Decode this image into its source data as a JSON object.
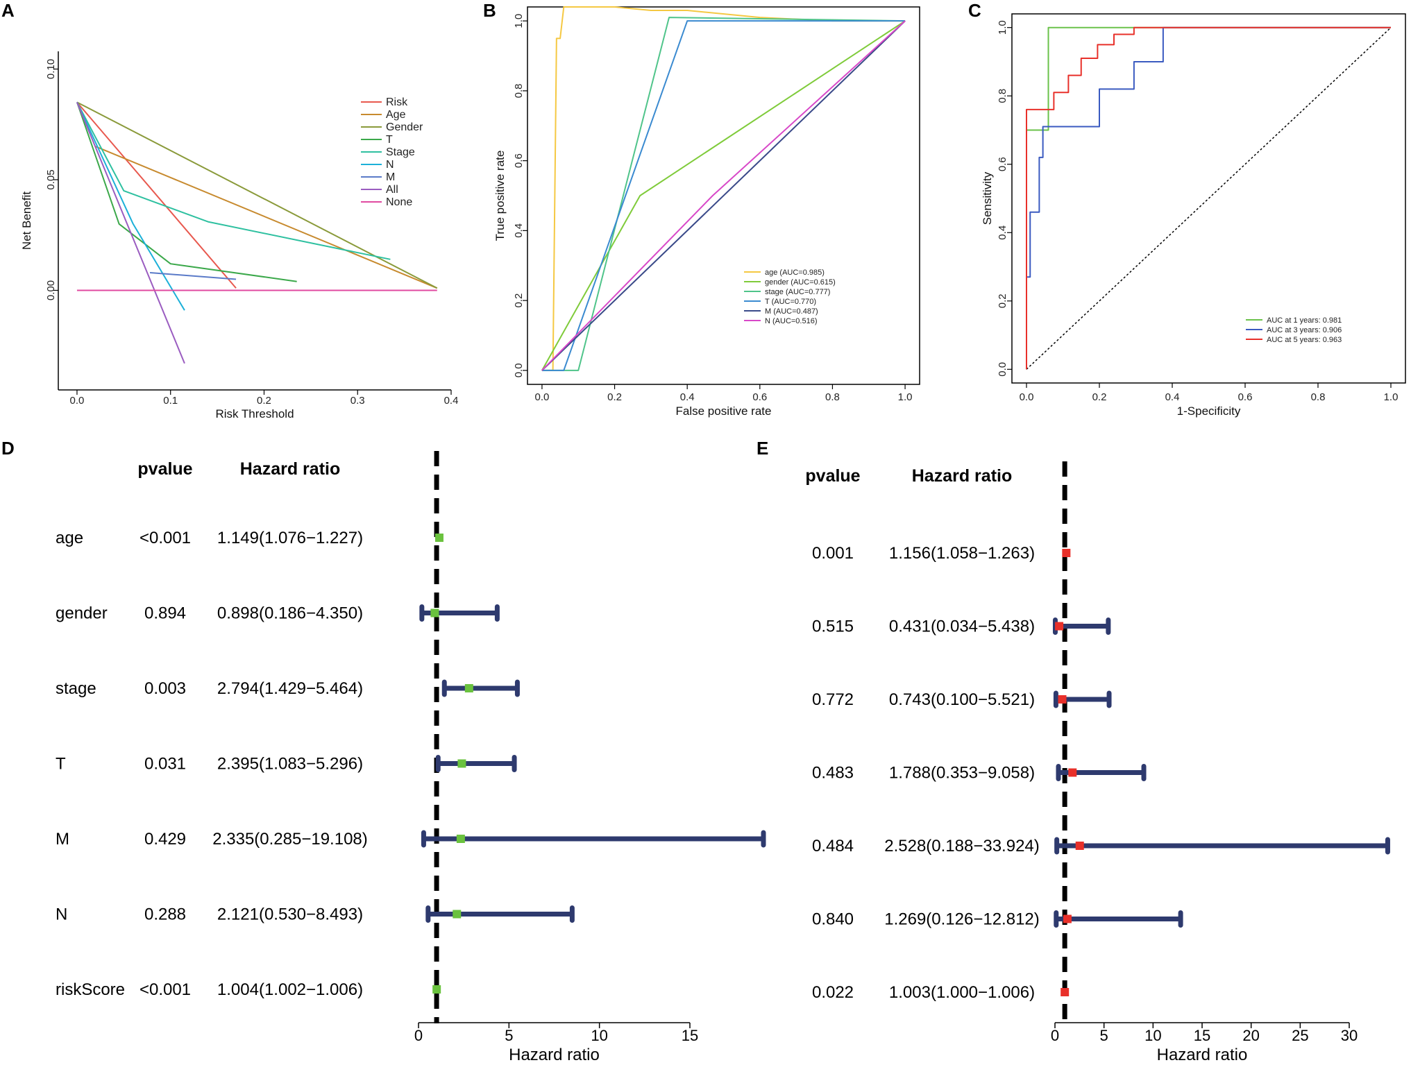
{
  "panels": {
    "A": "A",
    "B": "B",
    "C": "C",
    "D": "D",
    "E": "E"
  },
  "chart_data": [
    {
      "id": "A",
      "type": "line",
      "title": "",
      "xlabel": "Risk Threshold",
      "ylabel": "Net Benefit",
      "xlim": [
        -0.02,
        0.4
      ],
      "ylim": [
        -0.045,
        0.108
      ],
      "xticks": [
        0.0,
        0.1,
        0.2,
        0.3,
        0.4
      ],
      "xtick_labels": [
        "0.0",
        "0.1",
        "0.2",
        "0.3",
        "0.4"
      ],
      "yticks": [
        0.0,
        0.05,
        0.1
      ],
      "ytick_labels": [
        "0.00",
        "0.05",
        "0.10"
      ],
      "legend": "top-right",
      "series": [
        {
          "name": "Risk",
          "color": "#e8584e",
          "x": [
            0.0,
            0.17
          ],
          "y": [
            0.085,
            0.001
          ]
        },
        {
          "name": "Age",
          "color": "#c78a2e",
          "x": [
            0.02,
            0.385
          ],
          "y": [
            0.065,
            0.001
          ]
        },
        {
          "name": "Gender",
          "color": "#8a9a3a",
          "x": [
            0.0,
            0.385
          ],
          "y": [
            0.085,
            0.001
          ]
        },
        {
          "name": "T",
          "color": "#3ba84a",
          "x": [
            0.0,
            0.045,
            0.1,
            0.235
          ],
          "y": [
            0.085,
            0.03,
            0.012,
            0.004
          ]
        },
        {
          "name": "Stage",
          "color": "#2ec0a0",
          "x": [
            0.0,
            0.05,
            0.14,
            0.335
          ],
          "y": [
            0.085,
            0.045,
            0.031,
            0.014
          ]
        },
        {
          "name": "N",
          "color": "#1cb0d8",
          "x": [
            0.0,
            0.06,
            0.115
          ],
          "y": [
            0.085,
            0.03,
            -0.009
          ]
        },
        {
          "name": "M",
          "color": "#5a7ac8",
          "x": [
            0.078,
            0.17
          ],
          "y": [
            0.008,
            0.005
          ]
        },
        {
          "name": "All",
          "color": "#9a5cc0",
          "x": [
            0.0,
            0.115
          ],
          "y": [
            0.085,
            -0.033
          ]
        },
        {
          "name": "None",
          "color": "#e04aa0",
          "x": [
            0.0,
            0.385
          ],
          "y": [
            0.0,
            0.0
          ]
        }
      ]
    },
    {
      "id": "B",
      "type": "line",
      "title": "",
      "xlabel": "False positive rate",
      "ylabel": "True positive rate",
      "xlim": [
        -0.04,
        1.04
      ],
      "ylim": [
        -0.04,
        1.04
      ],
      "xticks": [
        0.0,
        0.2,
        0.4,
        0.6,
        0.8,
        1.0
      ],
      "xtick_labels": [
        "0.0",
        "0.2",
        "0.4",
        "0.6",
        "0.8",
        "1.0"
      ],
      "yticks": [
        0.0,
        0.2,
        0.4,
        0.6,
        0.8,
        1.0
      ],
      "ytick_labels": [
        "0.0",
        "0.2",
        "0.4",
        "0.6",
        "0.8",
        "1.0"
      ],
      "legend": "bottom-right",
      "series": [
        {
          "name": "age (AUC=0.985)",
          "color": "#f5c842",
          "x": [
            0.0,
            0.03,
            0.04,
            0.05,
            0.06,
            0.1,
            0.2,
            0.3,
            0.4,
            0.6,
            0.8,
            1.0
          ],
          "y": [
            0.0,
            0.0,
            0.95,
            0.95,
            1.04,
            1.04,
            1.04,
            1.03,
            1.03,
            1.01,
            1.0,
            1.0
          ]
        },
        {
          "name": "gender (AUC=0.615)",
          "color": "#7fcb3a",
          "x": [
            0.0,
            0.27,
            1.0
          ],
          "y": [
            0.0,
            0.5,
            1.0
          ]
        },
        {
          "name": "stage (AUC=0.777)",
          "color": "#4fc48a",
          "x": [
            0.0,
            0.1,
            0.35,
            1.0
          ],
          "y": [
            0.0,
            0.0,
            1.01,
            1.0
          ]
        },
        {
          "name": "T (AUC=0.770)",
          "color": "#3a8ad0",
          "x": [
            0.0,
            0.06,
            0.4,
            1.0
          ],
          "y": [
            0.0,
            0.0,
            1.0,
            1.0
          ]
        },
        {
          "name": "M (AUC=0.487)",
          "color": "#3a4a8a",
          "x": [
            0.0,
            1.0
          ],
          "y": [
            0.0,
            1.0
          ]
        },
        {
          "name": "N (AUC=0.516)",
          "color": "#d848c8",
          "x": [
            0.0,
            0.47,
            1.0
          ],
          "y": [
            0.0,
            0.5,
            1.0
          ]
        }
      ],
      "reference": {
        "x": [
          0.0,
          1.0
        ],
        "y": [
          0.0,
          1.0
        ]
      }
    },
    {
      "id": "C",
      "type": "line",
      "title": "",
      "xlabel": "1-Specificity",
      "ylabel": "Sensitivity",
      "xlim": [
        -0.04,
        1.04
      ],
      "ylim": [
        -0.04,
        1.04
      ],
      "xticks": [
        0.0,
        0.2,
        0.4,
        0.6,
        0.8,
        1.0
      ],
      "xtick_labels": [
        "0.0",
        "0.2",
        "0.4",
        "0.6",
        "0.8",
        "1.0"
      ],
      "yticks": [
        0.0,
        0.2,
        0.4,
        0.6,
        0.8,
        1.0
      ],
      "ytick_labels": [
        "0.0",
        "0.2",
        "0.4",
        "0.6",
        "0.8",
        "1.0"
      ],
      "legend": "bottom-right",
      "series": [
        {
          "name": "AUC at 1 years: 0.981",
          "color": "#6ac24a",
          "x": [
            0.0,
            0.0,
            0.06,
            0.06,
            1.0
          ],
          "y": [
            0.0,
            0.7,
            0.7,
            1.0,
            1.0
          ]
        },
        {
          "name": "AUC at 3 years: 0.906",
          "color": "#3a5ac0",
          "x": [
            0.0,
            0.0,
            0.01,
            0.01,
            0.035,
            0.035,
            0.045,
            0.045,
            0.2,
            0.2,
            0.295,
            0.295,
            0.375,
            0.375,
            1.0
          ],
          "y": [
            0.0,
            0.27,
            0.27,
            0.46,
            0.46,
            0.62,
            0.62,
            0.71,
            0.71,
            0.82,
            0.82,
            0.9,
            0.9,
            1.0,
            1.0
          ]
        },
        {
          "name": "AUC at 5 years: 0.963",
          "color": "#e8302a",
          "x": [
            0.0,
            0.0,
            0.075,
            0.075,
            0.115,
            0.115,
            0.15,
            0.15,
            0.195,
            0.195,
            0.24,
            0.24,
            0.295,
            0.295,
            1.0
          ],
          "y": [
            0.0,
            0.76,
            0.76,
            0.81,
            0.81,
            0.86,
            0.86,
            0.91,
            0.91,
            0.95,
            0.95,
            0.98,
            0.98,
            1.0,
            1.0
          ]
        }
      ],
      "reference": {
        "x": [
          0.0,
          1.0
        ],
        "y": [
          0.0,
          1.0
        ]
      }
    },
    {
      "id": "D",
      "type": "forest",
      "xlabel": "Hazard ratio",
      "col_headers": {
        "pvalue": "pvalue",
        "hr": "Hazard ratio"
      },
      "xlim": [
        0,
        15
      ],
      "xticks": [
        0,
        5,
        10,
        15
      ],
      "ref": 1,
      "marker_color": "#6ac23e",
      "ci_color": "#2e3a6e",
      "rows": [
        {
          "label": "age",
          "pvalue": "<0.001",
          "hr_text": "1.149(1.076−1.227)",
          "hr": 1.149,
          "lo": 1.076,
          "hi": 1.227
        },
        {
          "label": "gender",
          "pvalue": "0.894",
          "hr_text": "0.898(0.186−4.350)",
          "hr": 0.898,
          "lo": 0.186,
          "hi": 4.35
        },
        {
          "label": "stage",
          "pvalue": "0.003",
          "hr_text": "2.794(1.429−5.464)",
          "hr": 2.794,
          "lo": 1.429,
          "hi": 5.464
        },
        {
          "label": "T",
          "pvalue": "0.031",
          "hr_text": "2.395(1.083−5.296)",
          "hr": 2.395,
          "lo": 1.083,
          "hi": 5.296
        },
        {
          "label": "M",
          "pvalue": "0.429",
          "hr_text": "2.335(0.285−19.108)",
          "hr": 2.335,
          "lo": 0.285,
          "hi": 19.108
        },
        {
          "label": "N",
          "pvalue": "0.288",
          "hr_text": "2.121(0.530−8.493)",
          "hr": 2.121,
          "lo": 0.53,
          "hi": 8.493
        },
        {
          "label": "riskScore",
          "pvalue": "<0.001",
          "hr_text": "1.004(1.002−1.006)",
          "hr": 1.004,
          "lo": 1.002,
          "hi": 1.006
        }
      ]
    },
    {
      "id": "E",
      "type": "forest",
      "xlabel": "Hazard ratio",
      "col_headers": {
        "pvalue": "pvalue",
        "hr": "Hazard ratio"
      },
      "xlim": [
        0,
        30
      ],
      "xticks": [
        0,
        5,
        10,
        15,
        20,
        25,
        30
      ],
      "ref": 1,
      "marker_color": "#e8302a",
      "ci_color": "#2e3a6e",
      "rows": [
        {
          "label": "",
          "pvalue": "0.001",
          "hr_text": "1.156(1.058−1.263)",
          "hr": 1.156,
          "lo": 1.058,
          "hi": 1.263
        },
        {
          "label": "",
          "pvalue": "0.515",
          "hr_text": "0.431(0.034−5.438)",
          "hr": 0.431,
          "lo": 0.034,
          "hi": 5.438
        },
        {
          "label": "",
          "pvalue": "0.772",
          "hr_text": "0.743(0.100−5.521)",
          "hr": 0.743,
          "lo": 0.1,
          "hi": 5.521
        },
        {
          "label": "",
          "pvalue": "0.483",
          "hr_text": "1.788(0.353−9.058)",
          "hr": 1.788,
          "lo": 0.353,
          "hi": 9.058
        },
        {
          "label": "",
          "pvalue": "0.484",
          "hr_text": "2.528(0.188−33.924)",
          "hr": 2.528,
          "lo": 0.188,
          "hi": 33.924
        },
        {
          "label": "",
          "pvalue": "0.840",
          "hr_text": "1.269(0.126−12.812)",
          "hr": 1.269,
          "lo": 0.126,
          "hi": 12.812
        },
        {
          "label": "",
          "pvalue": "0.022",
          "hr_text": "1.003(1.000−1.006)",
          "hr": 1.003,
          "lo": 1.0,
          "hi": 1.006
        }
      ]
    }
  ]
}
